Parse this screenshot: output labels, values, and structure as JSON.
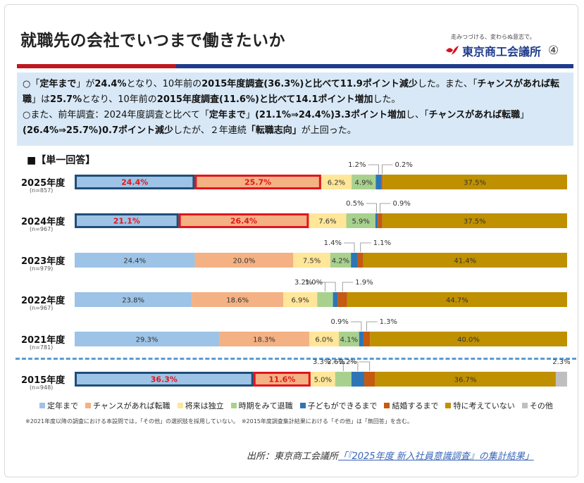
{
  "title": "就職先の会社でいつまで働きたいか",
  "brand": {
    "tagline": "走みつづける、変わらぬ意志で。",
    "name": "東京商工会議所",
    "page": "④"
  },
  "summary": {
    "line1": [
      {
        "t": "○「",
        "b": false
      },
      {
        "t": "定年まで",
        "b": true
      },
      {
        "t": "」が",
        "b": false
      },
      {
        "t": "24.4%",
        "b": true
      },
      {
        "t": "となり、10年前の",
        "b": false
      },
      {
        "t": "2015年度調査(36.3%)と比べて11.9ポイント減少",
        "b": true
      },
      {
        "t": "した。また、「",
        "b": false
      },
      {
        "t": "チャンスがあれば転職",
        "b": true
      },
      {
        "t": "」は",
        "b": false
      },
      {
        "t": "25.7%",
        "b": true
      },
      {
        "t": "となり、10年前の",
        "b": false
      },
      {
        "t": "2015年度調査(11.6%)と比べて14.1ポイント増加",
        "b": true
      },
      {
        "t": "した。",
        "b": false
      }
    ],
    "line2": [
      {
        "t": "○また、前年調査：2024年度調査と比べて「",
        "b": false
      },
      {
        "t": "定年まで",
        "b": true
      },
      {
        "t": "」",
        "b": false
      },
      {
        "t": "(21.1%⇒24.4%)3.3ポイント増加",
        "b": true
      },
      {
        "t": "し、「",
        "b": false
      },
      {
        "t": "チャンスがあれば転職",
        "b": true
      },
      {
        "t": "」",
        "b": false
      },
      {
        "t": "(26.4%⇒25.7%)0.7ポイント減少",
        "b": true
      },
      {
        "t": "したが、２年連続",
        "b": false
      },
      {
        "t": "「転職志向」",
        "b": true
      },
      {
        "t": "が上回った。",
        "b": false
      }
    ]
  },
  "section_label": "■【単一回答】",
  "legend": [
    {
      "name": "定年まで",
      "color": "#9dc3e6"
    },
    {
      "name": "チャンスがあれば転職",
      "color": "#f4b183"
    },
    {
      "name": "将来は独立",
      "color": "#ffe699"
    },
    {
      "name": "時期をみて退職",
      "color": "#a9d18e"
    },
    {
      "name": "子どもができるまで",
      "color": "#2e75b6"
    },
    {
      "name": "結婚するまで",
      "color": "#c55a11"
    },
    {
      "name": "特に考えていない",
      "color": "#bf9000"
    },
    {
      "name": "その他",
      "color": "#bfbfbf"
    }
  ],
  "footnote": "※2021年度以降の調査における本設問では，「その他」の選択肢を採用していない。　※2015年度調査集計結果における「その他」は「無回答」を含む。",
  "source": {
    "prefix": "出所：東京商工会議所",
    "link": "「『2025年度 新入社員意識調査』の集計結果」"
  },
  "chart_data": {
    "type": "bar",
    "orientation": "horizontal",
    "stacked": true,
    "unit": "%",
    "categories": [
      "2025年度",
      "2024年度",
      "2023年度",
      "2022年度",
      "2021年度",
      "2015年度"
    ],
    "n_labels": [
      "(n=857)",
      "(n=967)",
      "(n=979)",
      "(n=967)",
      "(n=781)",
      "(n=948)"
    ],
    "series": [
      {
        "name": "定年まで",
        "values": [
          24.4,
          21.1,
          24.4,
          23.8,
          29.3,
          36.3
        ]
      },
      {
        "name": "チャンスがあれば転職",
        "values": [
          25.7,
          26.4,
          20.0,
          18.6,
          18.3,
          11.6
        ]
      },
      {
        "name": "将来は独立",
        "values": [
          6.2,
          7.6,
          7.5,
          6.9,
          6.0,
          5.0
        ]
      },
      {
        "name": "時期をみて退職",
        "values": [
          4.9,
          5.9,
          4.2,
          3.2,
          4.1,
          3.3
        ]
      },
      {
        "name": "子どもができるまで",
        "values": [
          1.2,
          0.5,
          1.4,
          1.0,
          0.9,
          2.6
        ]
      },
      {
        "name": "結婚するまで",
        "values": [
          0.2,
          0.9,
          1.1,
          1.9,
          1.3,
          2.2
        ]
      },
      {
        "name": "特に考えていない",
        "values": [
          37.5,
          37.5,
          41.4,
          44.7,
          40.0,
          36.7
        ]
      },
      {
        "name": "その他",
        "values": [
          0,
          0,
          0,
          0,
          0,
          2.3
        ]
      }
    ],
    "callouts": [
      [
        "1.2%",
        "0.2%"
      ],
      [
        "0.5%",
        "0.9%"
      ],
      [
        "1.4%",
        "1.1%"
      ],
      [
        "3.2%",
        "1.0%",
        "1.9%"
      ],
      [
        "0.9%",
        "1.3%"
      ],
      [
        "3.3%",
        "2.6%",
        "2.2%",
        "2.3%"
      ]
    ],
    "highlighted": {
      "series": [
        "定年まで",
        "チャンスがあれば転職"
      ],
      "categories": [
        "2025年度",
        "2024年度",
        "2015年度"
      ]
    },
    "xlim": [
      0,
      100
    ]
  }
}
